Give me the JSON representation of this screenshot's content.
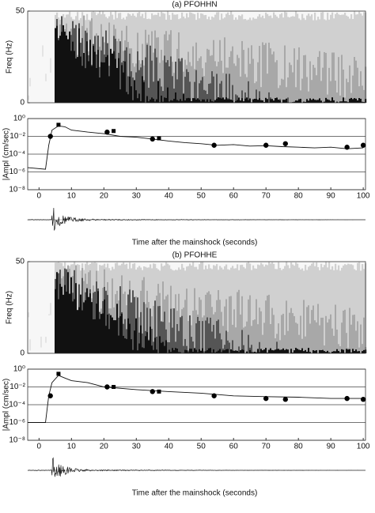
{
  "chart_data": [
    {
      "type": "line",
      "title": "(a)  PFOHHN",
      "spectrogram": {
        "ylabel": "Freq (Hz)",
        "ylim": [
          0,
          50
        ],
        "yticks": [
          0,
          50
        ]
      },
      "ylabel": "|Ampl (cm/sec)",
      "xlabel": "Time after the mainshock (seconds)",
      "xlim": [
        -3.5,
        100.7
      ],
      "xticks": [
        0,
        10,
        20,
        30,
        40,
        50,
        60,
        70,
        80,
        90,
        100
      ],
      "log_y": true,
      "grid": true,
      "ylim": [
        1e-08,
        1
      ],
      "yticks": [
        {
          "value": 1,
          "label": "10⁰"
        },
        {
          "value": 0.01,
          "label": "10⁻²"
        },
        {
          "value": 0.0001,
          "label": "10⁻⁴"
        },
        {
          "value": 1e-06,
          "label": "10⁻⁶"
        },
        {
          "value": 1e-08,
          "label": "10⁻⁸"
        }
      ],
      "color": "#111111",
      "x": [
        -3.5,
        2,
        3,
        4,
        6,
        8,
        10,
        15,
        20,
        25,
        30,
        35,
        40,
        45,
        50,
        55,
        60,
        65,
        70,
        75,
        80,
        85,
        90,
        95,
        100
      ],
      "values": [
        3e-06,
        2e-06,
        0.001,
        0.05,
        0.15,
        0.12,
        0.05,
        0.03,
        0.02,
        0.01,
        0.008,
        0.005,
        0.003,
        0.002,
        0.0015,
        0.001,
        0.0012,
        0.0008,
        0.0009,
        0.0007,
        0.0006,
        0.0005,
        0.0006,
        0.0004,
        0.0005
      ],
      "markers": [
        {
          "shape": "circle",
          "x": [
            3.5,
            21,
            35,
            54,
            70,
            76,
            95,
            100
          ],
          "values": [
            0.01,
            0.03,
            0.005,
            0.001,
            0.001,
            0.0015,
            0.0006,
            0.001
          ]
        },
        {
          "shape": "square",
          "x": [
            6,
            23,
            37
          ],
          "values": [
            0.2,
            0.04,
            0.006
          ]
        }
      ]
    },
    {
      "type": "line",
      "title": "(b)  PFOHHE",
      "spectrogram": {
        "ylabel": "Freq (Hz)",
        "ylim": [
          0,
          50
        ],
        "yticks": [
          0,
          50
        ]
      },
      "ylabel": "|Ampl (cm/sec)",
      "xlabel": "Time after the mainshock (seconds)",
      "xlim": [
        -3.5,
        100.7
      ],
      "xticks": [
        0,
        10,
        20,
        30,
        40,
        50,
        60,
        70,
        80,
        90,
        100
      ],
      "log_y": true,
      "grid": true,
      "ylim": [
        1e-08,
        1
      ],
      "yticks": [
        {
          "value": 1,
          "label": "10⁰"
        },
        {
          "value": 0.01,
          "label": "10⁻²"
        },
        {
          "value": 0.0001,
          "label": "10⁻⁴"
        },
        {
          "value": 1e-06,
          "label": "10⁻⁶"
        },
        {
          "value": 1e-08,
          "label": "10⁻⁸"
        }
      ],
      "color": "#111111",
      "x": [
        -3.5,
        2,
        3,
        4,
        6,
        8,
        10,
        15,
        20,
        30,
        40,
        50,
        60,
        70,
        80,
        90,
        100
      ],
      "values": [
        1e-06,
        1e-06,
        0.001,
        0.03,
        0.2,
        0.1,
        0.05,
        0.03,
        0.01,
        0.005,
        0.003,
        0.002,
        0.001,
        0.0008,
        0.0007,
        0.0005,
        0.0005
      ],
      "markers": [
        {
          "shape": "circle",
          "x": [
            3.5,
            21,
            35,
            54,
            70,
            76,
            95,
            100
          ],
          "values": [
            0.001,
            0.01,
            0.003,
            0.001,
            0.0005,
            0.0004,
            0.0005,
            0.0004
          ]
        },
        {
          "shape": "square",
          "x": [
            6,
            23,
            37
          ],
          "values": [
            0.3,
            0.01,
            0.003
          ]
        }
      ]
    }
  ]
}
